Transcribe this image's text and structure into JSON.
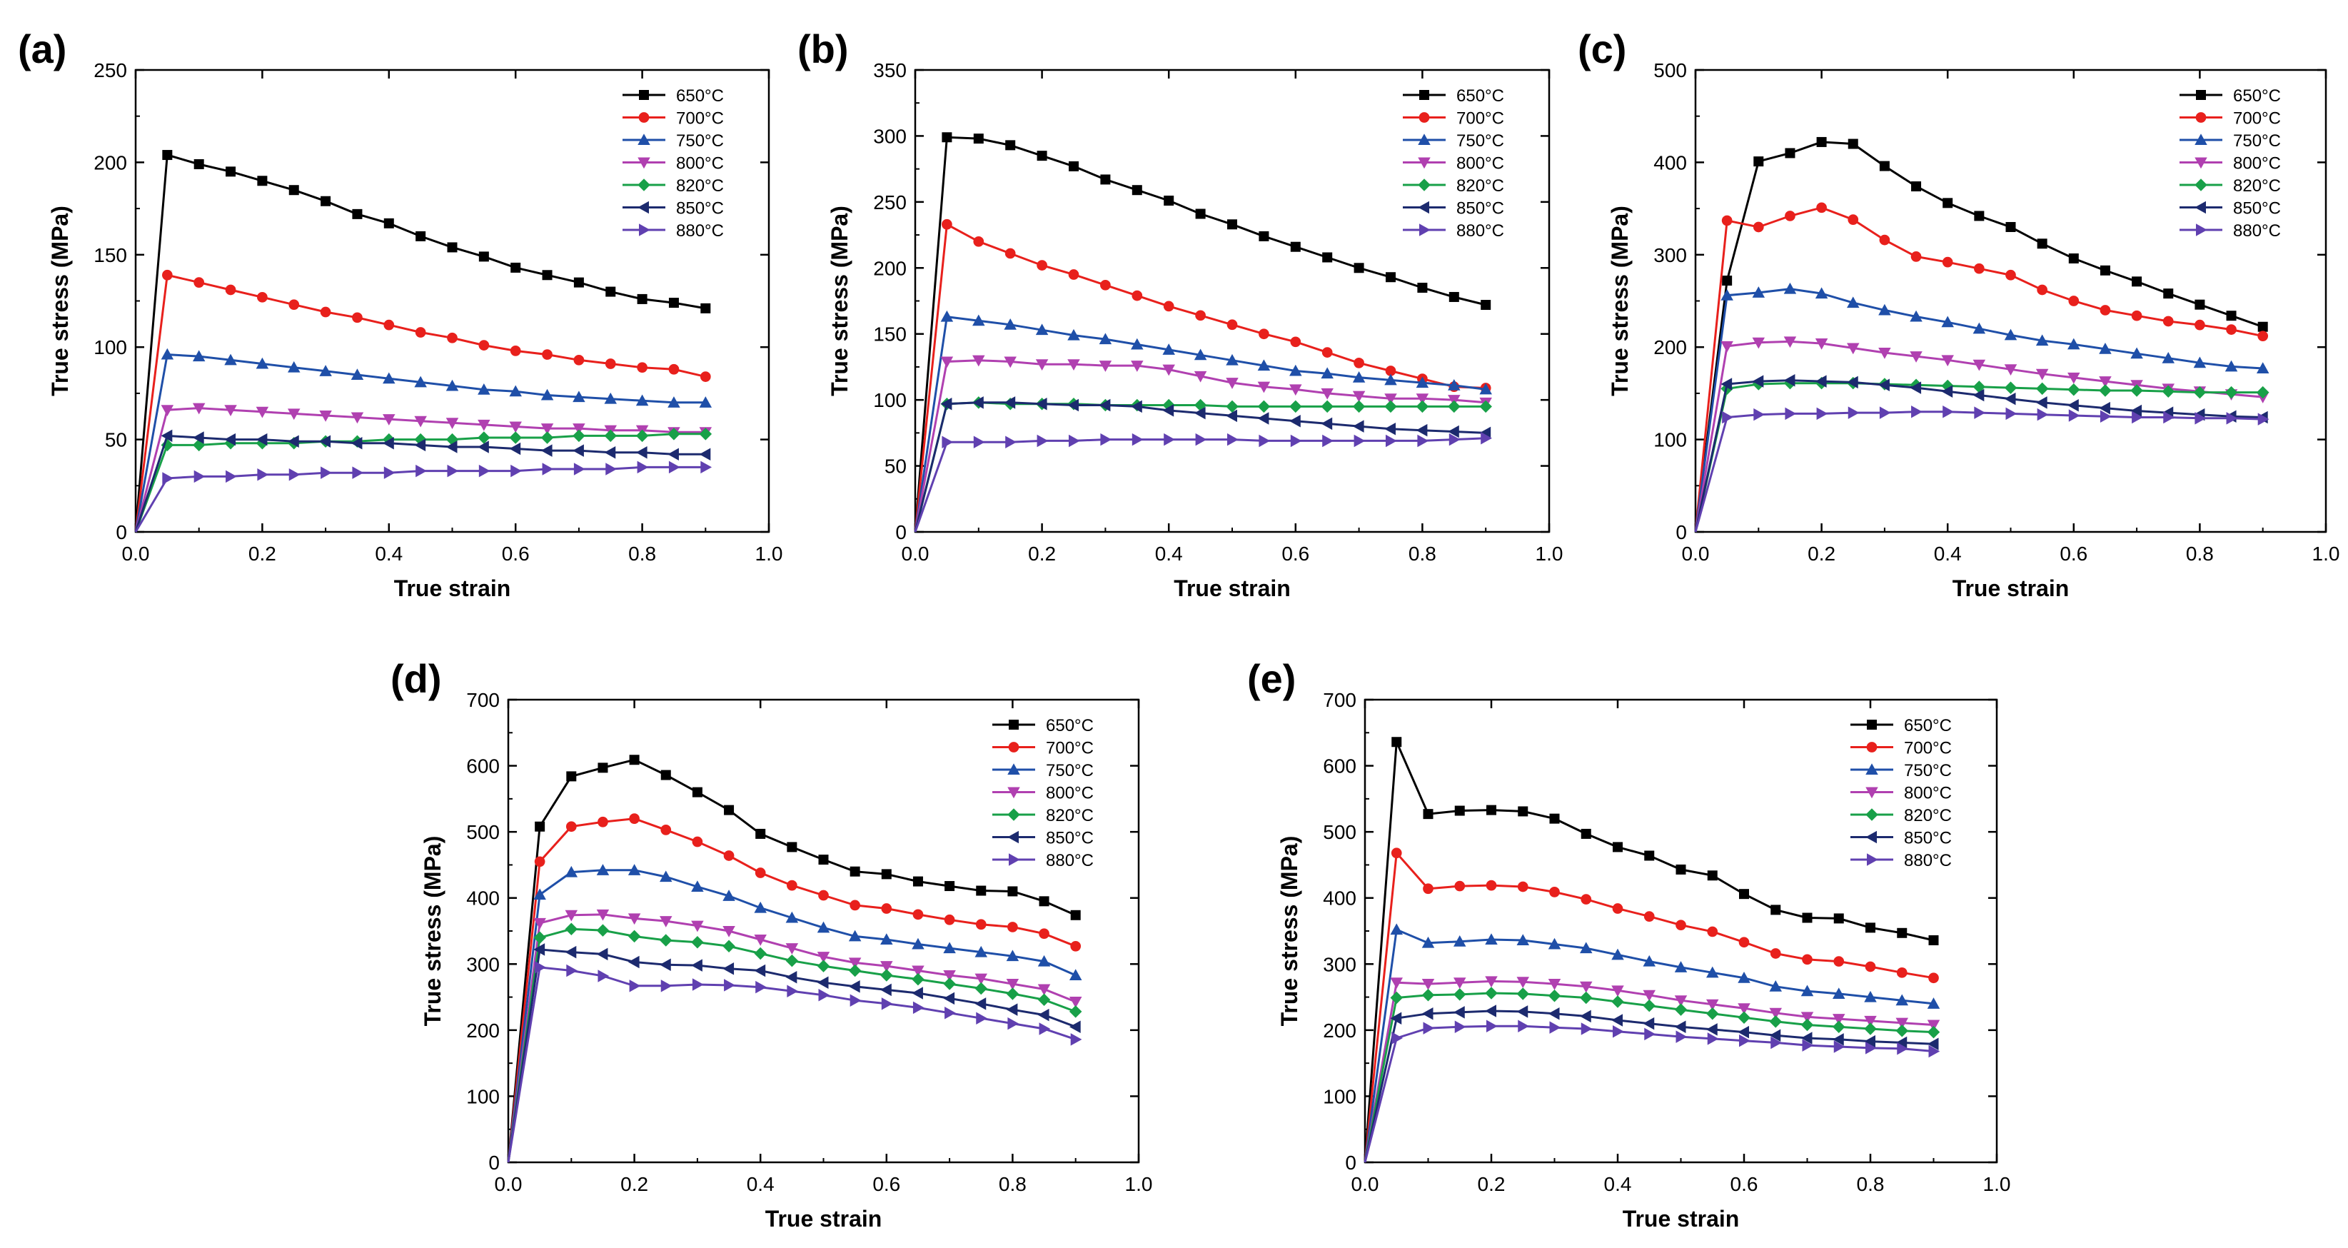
{
  "figure": {
    "marker_legend": {
      "650°C": "square",
      "700°C": "circle",
      "750°C": "triangle-up",
      "800°C": "triangle-down",
      "820°C": "diamond",
      "850°C": "triangle-left",
      "880°C": "triangle-right"
    },
    "series_colors": {
      "650°C": "#000000",
      "700°C": "#e8201c",
      "750°C": "#1f4fa8",
      "800°C": "#b040b0",
      "820°C": "#18a048",
      "850°C": "#1c2a6e",
      "880°C": "#6040b0"
    }
  },
  "chart_data": [
    {
      "panel": "(a)",
      "type": "line",
      "xlabel": "True strain",
      "ylabel": "True stress (MPa)",
      "xlim": [
        0,
        1.0
      ],
      "ylim": [
        0,
        250
      ],
      "xticks": [
        "0.0",
        "0.2",
        "0.4",
        "0.6",
        "0.8",
        "1.0"
      ],
      "yticks": [
        "0",
        "50",
        "100",
        "150",
        "200",
        "250"
      ],
      "x": [
        0,
        0.05,
        0.1,
        0.15,
        0.2,
        0.25,
        0.3,
        0.35,
        0.4,
        0.45,
        0.5,
        0.55,
        0.6,
        0.65,
        0.7,
        0.75,
        0.8,
        0.85,
        0.9
      ],
      "series": [
        {
          "name": "650°C",
          "values": [
            0,
            204,
            199,
            195,
            190,
            185,
            179,
            172,
            167,
            160,
            154,
            149,
            143,
            139,
            135,
            130,
            126,
            124,
            121
          ]
        },
        {
          "name": "700°C",
          "values": [
            0,
            139,
            135,
            131,
            127,
            123,
            119,
            116,
            112,
            108,
            105,
            101,
            98,
            96,
            93,
            91,
            89,
            88,
            84
          ]
        },
        {
          "name": "750°C",
          "values": [
            0,
            96,
            95,
            93,
            91,
            89,
            87,
            85,
            83,
            81,
            79,
            77,
            76,
            74,
            73,
            72,
            71,
            70,
            70
          ]
        },
        {
          "name": "800°C",
          "values": [
            0,
            66,
            67,
            66,
            65,
            64,
            63,
            62,
            61,
            60,
            59,
            58,
            57,
            56,
            56,
            55,
            55,
            54,
            54
          ]
        },
        {
          "name": "820°C",
          "values": [
            0,
            47,
            47,
            48,
            48,
            48,
            49,
            49,
            50,
            50,
            50,
            51,
            51,
            51,
            52,
            52,
            52,
            53,
            53
          ]
        },
        {
          "name": "850°C",
          "values": [
            0,
            52,
            51,
            50,
            50,
            49,
            49,
            48,
            48,
            47,
            46,
            46,
            45,
            44,
            44,
            43,
            43,
            42,
            42
          ]
        },
        {
          "name": "880°C",
          "values": [
            0,
            29,
            30,
            30,
            31,
            31,
            32,
            32,
            32,
            33,
            33,
            33,
            33,
            34,
            34,
            34,
            35,
            35,
            35
          ]
        }
      ]
    },
    {
      "panel": "(b)",
      "type": "line",
      "xlabel": "True strain",
      "ylabel": "True stress (MPa)",
      "xlim": [
        0,
        1.0
      ],
      "ylim": [
        0,
        350
      ],
      "xticks": [
        "0.0",
        "0.2",
        "0.4",
        "0.6",
        "0.8",
        "1.0"
      ],
      "yticks": [
        "0",
        "50",
        "100",
        "150",
        "200",
        "250",
        "300",
        "350"
      ],
      "x": [
        0,
        0.05,
        0.1,
        0.15,
        0.2,
        0.25,
        0.3,
        0.35,
        0.4,
        0.45,
        0.5,
        0.55,
        0.6,
        0.65,
        0.7,
        0.75,
        0.8,
        0.85,
        0.9
      ],
      "series": [
        {
          "name": "650°C",
          "values": [
            0,
            299,
            298,
            293,
            285,
            277,
            267,
            259,
            251,
            241,
            233,
            224,
            216,
            208,
            200,
            193,
            185,
            178,
            172
          ]
        },
        {
          "name": "700°C",
          "values": [
            0,
            233,
            220,
            211,
            202,
            195,
            187,
            179,
            171,
            164,
            157,
            150,
            144,
            136,
            128,
            122,
            116,
            110,
            109
          ]
        },
        {
          "name": "750°C",
          "values": [
            0,
            163,
            160,
            157,
            153,
            149,
            146,
            142,
            138,
            134,
            130,
            126,
            122,
            120,
            117,
            115,
            113,
            111,
            108
          ]
        },
        {
          "name": "800°C",
          "values": [
            0,
            129,
            130,
            129,
            127,
            127,
            126,
            126,
            123,
            118,
            113,
            110,
            108,
            105,
            103,
            101,
            101,
            100,
            98
          ]
        },
        {
          "name": "820°C",
          "values": [
            0,
            97,
            98,
            97,
            97,
            97,
            96,
            96,
            96,
            96,
            95,
            95,
            95,
            95,
            95,
            95,
            95,
            95,
            95
          ]
        },
        {
          "name": "850°C",
          "values": [
            0,
            97,
            98,
            98,
            97,
            96,
            96,
            95,
            92,
            90,
            88,
            86,
            84,
            82,
            80,
            78,
            77,
            76,
            75
          ]
        },
        {
          "name": "880°C",
          "values": [
            0,
            68,
            68,
            68,
            69,
            69,
            70,
            70,
            70,
            70,
            70,
            69,
            69,
            69,
            69,
            69,
            69,
            70,
            71
          ]
        }
      ]
    },
    {
      "panel": "(c)",
      "type": "line",
      "xlabel": "True strain",
      "ylabel": "True stress (MPa)",
      "xlim": [
        0,
        1.0
      ],
      "ylim": [
        0,
        500
      ],
      "xticks": [
        "0.0",
        "0.2",
        "0.4",
        "0.6",
        "0.8",
        "1.0"
      ],
      "yticks": [
        "0",
        "100",
        "200",
        "300",
        "400",
        "500"
      ],
      "x": [
        0,
        0.05,
        0.1,
        0.15,
        0.2,
        0.25,
        0.3,
        0.35,
        0.4,
        0.45,
        0.5,
        0.55,
        0.6,
        0.65,
        0.7,
        0.75,
        0.8,
        0.85,
        0.9
      ],
      "series": [
        {
          "name": "650°C",
          "values": [
            0,
            272,
            401,
            410,
            422,
            420,
            396,
            374,
            356,
            342,
            330,
            312,
            296,
            283,
            271,
            258,
            246,
            234,
            222
          ]
        },
        {
          "name": "700°C",
          "values": [
            0,
            337,
            330,
            342,
            351,
            338,
            316,
            298,
            292,
            285,
            278,
            262,
            250,
            240,
            234,
            228,
            224,
            219,
            212
          ]
        },
        {
          "name": "750°C",
          "values": [
            0,
            256,
            259,
            263,
            258,
            248,
            240,
            233,
            227,
            220,
            213,
            207,
            203,
            198,
            193,
            188,
            183,
            179,
            177
          ]
        },
        {
          "name": "800°C",
          "values": [
            0,
            201,
            205,
            206,
            204,
            199,
            194,
            190,
            186,
            181,
            176,
            171,
            167,
            163,
            159,
            155,
            152,
            149,
            146
          ]
        },
        {
          "name": "820°C",
          "values": [
            0,
            155,
            160,
            161,
            161,
            161,
            160,
            159,
            158,
            157,
            156,
            155,
            154,
            153,
            153,
            152,
            151,
            151,
            151
          ]
        },
        {
          "name": "850°C",
          "values": [
            0,
            160,
            163,
            164,
            163,
            162,
            159,
            156,
            152,
            148,
            144,
            140,
            137,
            134,
            131,
            129,
            127,
            125,
            124
          ]
        },
        {
          "name": "880°C",
          "values": [
            0,
            124,
            127,
            128,
            128,
            129,
            129,
            130,
            130,
            129,
            128,
            127,
            126,
            125,
            124,
            124,
            123,
            123,
            122
          ]
        }
      ]
    },
    {
      "panel": "(d)",
      "type": "line",
      "xlabel": "True strain",
      "ylabel": "True stress (MPa)",
      "xlim": [
        0,
        1.0
      ],
      "ylim": [
        0,
        700
      ],
      "xticks": [
        "0.0",
        "0.2",
        "0.4",
        "0.6",
        "0.8",
        "1.0"
      ],
      "yticks": [
        "0",
        "100",
        "200",
        "300",
        "400",
        "500",
        "600",
        "700"
      ],
      "x": [
        0,
        0.05,
        0.1,
        0.15,
        0.2,
        0.25,
        0.3,
        0.35,
        0.4,
        0.45,
        0.5,
        0.55,
        0.6,
        0.65,
        0.7,
        0.75,
        0.8,
        0.85,
        0.9
      ],
      "series": [
        {
          "name": "650°C",
          "values": [
            0,
            508,
            584,
            597,
            609,
            586,
            560,
            533,
            497,
            477,
            458,
            440,
            436,
            425,
            418,
            411,
            410,
            395,
            374
          ]
        },
        {
          "name": "700°C",
          "values": [
            0,
            455,
            508,
            515,
            520,
            503,
            485,
            464,
            438,
            419,
            404,
            389,
            384,
            375,
            367,
            360,
            356,
            346,
            327
          ]
        },
        {
          "name": "750°C",
          "values": [
            0,
            405,
            439,
            442,
            442,
            432,
            417,
            403,
            385,
            370,
            355,
            342,
            337,
            330,
            324,
            318,
            312,
            304,
            283
          ]
        },
        {
          "name": "800°C",
          "values": [
            0,
            362,
            374,
            375,
            369,
            365,
            358,
            350,
            337,
            324,
            311,
            302,
            297,
            290,
            283,
            278,
            270,
            262,
            243
          ]
        },
        {
          "name": "820°C",
          "values": [
            0,
            340,
            353,
            351,
            342,
            336,
            333,
            327,
            316,
            305,
            297,
            290,
            283,
            277,
            270,
            263,
            255,
            246,
            228
          ]
        },
        {
          "name": "850°C",
          "values": [
            0,
            322,
            318,
            315,
            303,
            299,
            298,
            293,
            290,
            280,
            272,
            266,
            261,
            256,
            248,
            240,
            231,
            223,
            205
          ]
        },
        {
          "name": "880°C",
          "values": [
            0,
            295,
            290,
            282,
            267,
            267,
            269,
            268,
            265,
            259,
            253,
            245,
            240,
            234,
            226,
            218,
            210,
            202,
            186
          ]
        }
      ]
    },
    {
      "panel": "(e)",
      "type": "line",
      "xlabel": "True strain",
      "ylabel": "True stress (MPa)",
      "xlim": [
        0,
        1.0
      ],
      "ylim": [
        0,
        700
      ],
      "xticks": [
        "0.0",
        "0.2",
        "0.4",
        "0.6",
        "0.8",
        "1.0"
      ],
      "yticks": [
        "0",
        "100",
        "200",
        "300",
        "400",
        "500",
        "600",
        "700"
      ],
      "x": [
        0,
        0.05,
        0.1,
        0.15,
        0.2,
        0.25,
        0.3,
        0.35,
        0.4,
        0.45,
        0.5,
        0.55,
        0.6,
        0.65,
        0.7,
        0.75,
        0.8,
        0.85,
        0.9
      ],
      "series": [
        {
          "name": "650°C",
          "values": [
            0,
            636,
            527,
            532,
            533,
            531,
            520,
            497,
            477,
            464,
            443,
            434,
            406,
            382,
            370,
            369,
            355,
            347,
            336
          ]
        },
        {
          "name": "700°C",
          "values": [
            0,
            468,
            414,
            418,
            419,
            417,
            409,
            398,
            384,
            372,
            359,
            349,
            333,
            316,
            307,
            304,
            296,
            287,
            279
          ]
        },
        {
          "name": "750°C",
          "values": [
            0,
            352,
            332,
            334,
            337,
            336,
            330,
            324,
            314,
            304,
            295,
            287,
            279,
            266,
            259,
            255,
            250,
            245,
            240
          ]
        },
        {
          "name": "800°C",
          "values": [
            0,
            272,
            270,
            272,
            274,
            273,
            270,
            266,
            260,
            253,
            245,
            239,
            233,
            226,
            220,
            217,
            214,
            211,
            208
          ]
        },
        {
          "name": "820°C",
          "values": [
            0,
            249,
            253,
            254,
            256,
            255,
            252,
            249,
            243,
            237,
            231,
            225,
            219,
            213,
            208,
            205,
            202,
            199,
            197
          ]
        },
        {
          "name": "850°C",
          "values": [
            0,
            218,
            225,
            227,
            229,
            228,
            225,
            221,
            215,
            210,
            205,
            201,
            197,
            192,
            188,
            186,
            183,
            181,
            179
          ]
        },
        {
          "name": "880°C",
          "values": [
            0,
            188,
            203,
            205,
            206,
            206,
            204,
            202,
            198,
            194,
            190,
            187,
            184,
            181,
            177,
            175,
            173,
            172,
            168
          ]
        }
      ]
    }
  ]
}
